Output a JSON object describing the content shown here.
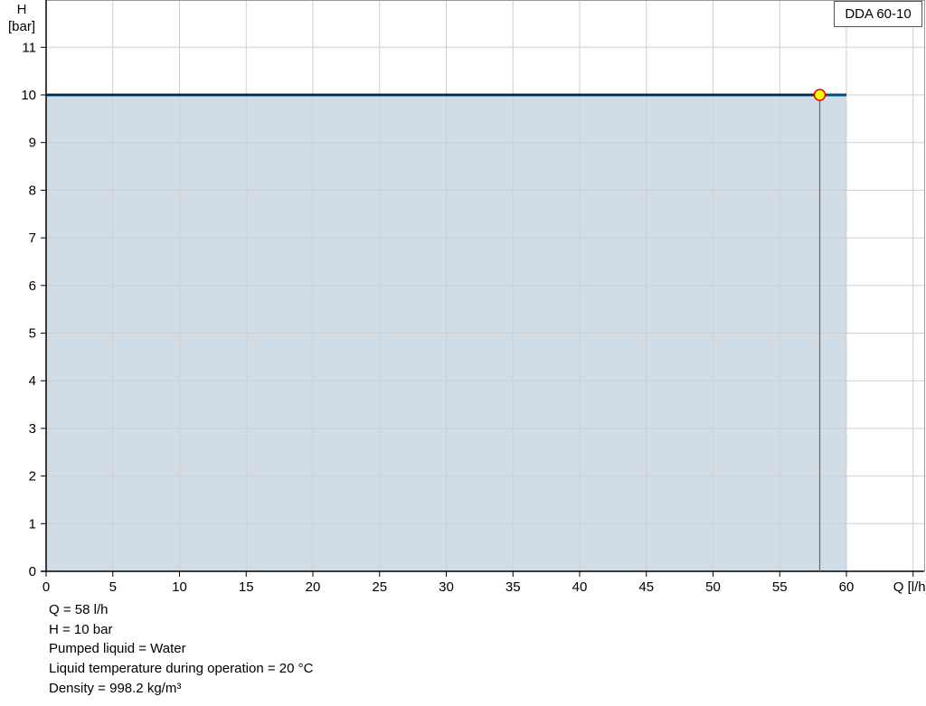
{
  "chart_data": {
    "type": "area",
    "title": "",
    "xlabel": "Q [l/h]",
    "ylabel_line1": "H",
    "ylabel_line2": "[bar]",
    "xlim": [
      0,
      65
    ],
    "ylim": [
      0,
      12
    ],
    "x_ticks": [
      0,
      5,
      10,
      15,
      20,
      25,
      30,
      35,
      40,
      45,
      50,
      55,
      60
    ],
    "y_ticks": [
      0,
      1,
      2,
      3,
      4,
      5,
      6,
      7,
      8,
      9,
      10,
      11
    ],
    "grid": true,
    "series": [
      {
        "name": "DDA 60-10",
        "x": [
          0,
          60
        ],
        "y": [
          10,
          10
        ],
        "color": "#004b87",
        "fill": "#d0dce6"
      }
    ],
    "operating_point": {
      "q": 58,
      "h": 10,
      "fill": "#ffff00",
      "stroke": "#e00000"
    },
    "legend": "top-right"
  },
  "info": [
    "Q = 58 l/h",
    "H = 10 bar",
    "Pumped liquid = Water",
    "Liquid temperature during operation = 20 °C",
    "Density = 998.2 kg/m³"
  ]
}
